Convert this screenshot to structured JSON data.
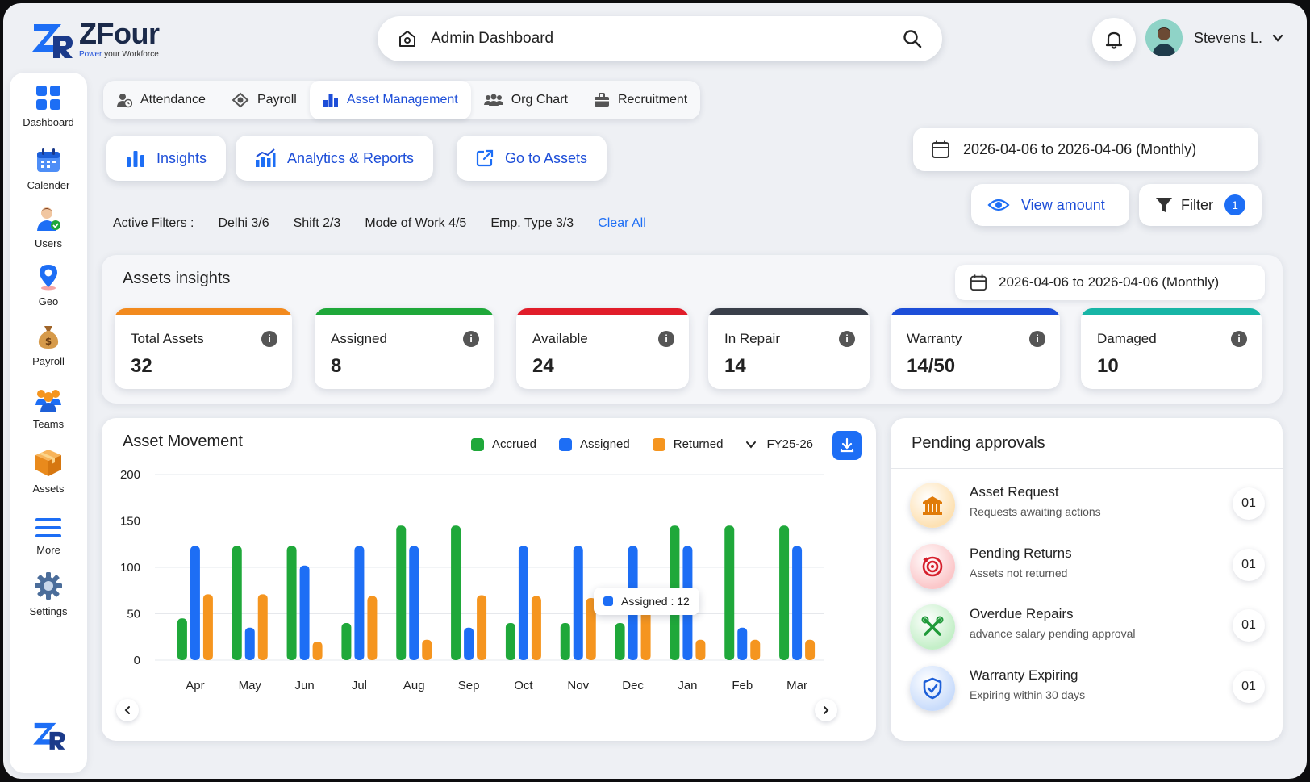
{
  "brand": {
    "name": "ZFour",
    "tagline_accent": "Power",
    "tagline_rest": "your Workforce",
    "accent_color": "#1d4ed8"
  },
  "search": {
    "title": "Admin Dashboard"
  },
  "user": {
    "name": "Stevens L."
  },
  "sidebar": {
    "items": [
      {
        "label": "Dashboard",
        "icon": "dashboard-icon"
      },
      {
        "label": "Calender",
        "icon": "calendar-icon"
      },
      {
        "label": "Users",
        "icon": "users-icon"
      },
      {
        "label": "Geo",
        "icon": "geo-pin-icon"
      },
      {
        "label": "Payroll",
        "icon": "money-bag-icon"
      },
      {
        "label": "Teams",
        "icon": "teams-icon"
      },
      {
        "label": "Assets",
        "icon": "box-icon"
      },
      {
        "label": "More",
        "icon": "menu-icon"
      },
      {
        "label": "Settings",
        "icon": "gear-icon"
      }
    ]
  },
  "module_tabs": [
    {
      "label": "Attendance",
      "icon": "attendance-icon"
    },
    {
      "label": "Payroll",
      "icon": "payroll-icon"
    },
    {
      "label": "Asset Management",
      "icon": "asset-icon",
      "active": true
    },
    {
      "label": "Org Chart",
      "icon": "org-chart-icon"
    },
    {
      "label": "Recruitment",
      "icon": "briefcase-icon"
    }
  ],
  "actions": {
    "insights": "Insights",
    "analytics": "Analytics & Reports",
    "go_assets": "Go to Assets",
    "date_range": "2026-04-06 to 2026-04-06 (Monthly)",
    "view_amount": "View amount",
    "filter": "Filter",
    "filter_count": "1"
  },
  "active_filters": {
    "label": "Active Filters :",
    "items": [
      "Delhi 3/6",
      "Shift  2/3",
      "Mode of Work  4/5",
      "Emp. Type  3/3"
    ],
    "clear": "Clear All"
  },
  "assets_insights": {
    "title": "Assets insights",
    "date_range": "2026-04-06 to 2026-04-06 (Monthly)",
    "stats": [
      {
        "label": "Total Assets",
        "value": "32",
        "color": "#f28a1e"
      },
      {
        "label": "Assigned",
        "value": "8",
        "color": "#1fa83a"
      },
      {
        "label": "Available",
        "value": "24",
        "color": "#e11d2a"
      },
      {
        "label": "In Repair",
        "value": "14",
        "color": "#3a3f4a"
      },
      {
        "label": "Warranty",
        "value": "14/50",
        "color": "#1d4ed8"
      },
      {
        "label": "Damaged",
        "value": "10",
        "color": "#17b5a6"
      }
    ]
  },
  "movement": {
    "title": "Asset Movement",
    "fiscal_year": "FY25-26",
    "tooltip": "Assigned : 12"
  },
  "chart_data": {
    "type": "bar",
    "categories": [
      "Apr",
      "May",
      "Jun",
      "Jul",
      "Aug",
      "Sep",
      "Oct",
      "Nov",
      "Dec",
      "Jan",
      "Feb",
      "Mar"
    ],
    "series": [
      {
        "name": "Accrued",
        "color": "#1fa83a",
        "values": [
          45,
          123,
          123,
          40,
          145,
          145,
          40,
          40,
          40,
          145,
          145,
          145
        ]
      },
      {
        "name": "Assigned",
        "color": "#1d6ef5",
        "values": [
          123,
          35,
          102,
          123,
          123,
          35,
          123,
          123,
          123,
          123,
          35,
          123
        ]
      },
      {
        "name": "Returned",
        "color": "#f5951f",
        "values": [
          71,
          71,
          20,
          69,
          22,
          70,
          69,
          67,
          67,
          22,
          22,
          22
        ]
      }
    ],
    "yticks": [
      0,
      50,
      100,
      150,
      200
    ],
    "ylim": [
      0,
      200
    ],
    "grid": true,
    "legend": "top-right"
  },
  "pending": {
    "title": "Pending approvals",
    "items": [
      {
        "name": "Asset Request",
        "sub": "Requests awaiting actions",
        "count": "01",
        "icon": "bank-icon",
        "bg": "#fde1b3",
        "fg": "#e07b0a"
      },
      {
        "name": "Pending Returns",
        "sub": "Assets not returned",
        "count": "01",
        "icon": "return-target-icon",
        "bg": "#fbc7c9",
        "fg": "#d61f2c"
      },
      {
        "name": "Overdue Repairs",
        "sub": "advance salary pending approval",
        "count": "01",
        "icon": "tools-icon",
        "bg": "#c4efc8",
        "fg": "#1f9a39"
      },
      {
        "name": "Warranty Expiring",
        "sub": "Expiring within 30 days",
        "count": "01",
        "icon": "shield-check-icon",
        "bg": "#c9dcfb",
        "fg": "#1d5fd8"
      }
    ]
  }
}
